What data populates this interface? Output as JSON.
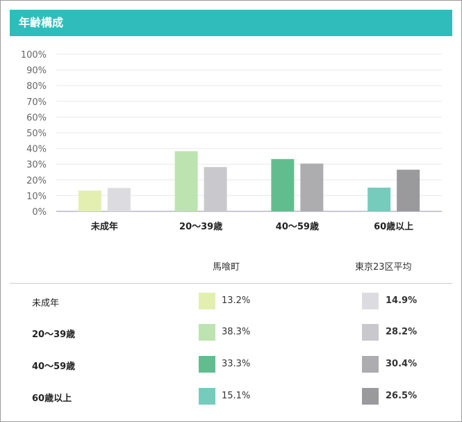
{
  "header": {
    "title": "年齢構成"
  },
  "chart_data": {
    "type": "bar",
    "categories": [
      "未成年",
      "20～39歳",
      "40～59歳",
      "60歳以上"
    ],
    "series": [
      {
        "name": "馬喰町",
        "values": [
          13.2,
          38.3,
          33.3,
          15.1
        ],
        "colors": [
          "#e2efb0",
          "#bde3b0",
          "#62bd8e",
          "#76ccbc"
        ]
      },
      {
        "name": "東京23区平均",
        "values": [
          14.9,
          28.2,
          30.4,
          26.5
        ],
        "colors": [
          "#dcdce0",
          "#c9c9cd",
          "#adadb0",
          "#9a9a9c"
        ]
      }
    ],
    "ylim": [
      0,
      100
    ],
    "yticks": [
      "0%",
      "10%",
      "20%",
      "30%",
      "40%",
      "50%",
      "60%",
      "70%",
      "80%",
      "90%",
      "100%"
    ],
    "grid": true
  },
  "table": {
    "col1": "馬喰町",
    "col2": "東京23区平均",
    "rows": [
      {
        "label": "未成年",
        "v1": "13.2%",
        "v2": "14.9%"
      },
      {
        "label": "20～39歳",
        "v1": "38.3%",
        "v2": "28.2%"
      },
      {
        "label": "40～59歳",
        "v1": "33.3%",
        "v2": "30.4%"
      },
      {
        "label": "60歳以上",
        "v1": "15.1%",
        "v2": "26.5%"
      }
    ]
  }
}
